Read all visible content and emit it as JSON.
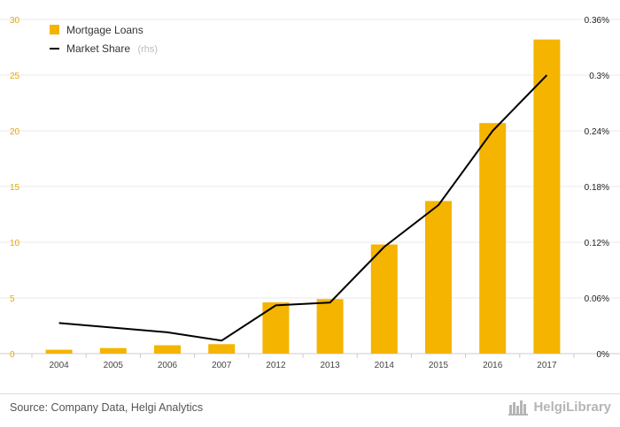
{
  "chart_data": {
    "type": "bar",
    "categories": [
      "2004",
      "2005",
      "2006",
      "2007",
      "2012",
      "2013",
      "2014",
      "2015",
      "2016",
      "2017"
    ],
    "series": [
      {
        "name": "Mortgage Loans",
        "type": "bar",
        "axis": "left",
        "color": "#f5b400",
        "values": [
          0.35,
          0.5,
          0.75,
          0.85,
          4.6,
          4.9,
          9.8,
          13.7,
          20.7,
          28.2
        ]
      },
      {
        "name": "Market Share",
        "type": "line",
        "axis": "right",
        "color": "#000000",
        "values": [
          0.033,
          0.028,
          0.023,
          0.014,
          0.052,
          0.055,
          0.115,
          0.16,
          0.24,
          0.3
        ]
      }
    ],
    "legend_note": "(rhs)",
    "ylim_left": [
      0,
      30
    ],
    "yticks_left": [
      "0",
      "5",
      "10",
      "15",
      "20",
      "25",
      "30"
    ],
    "ylim_right": [
      0,
      0.36
    ],
    "yticks_right": [
      "0%",
      "0.06%",
      "0.12%",
      "0.18%",
      "0.24%",
      "0.3%",
      "0.36%"
    ],
    "grid": true,
    "legend_position": "top-left"
  },
  "footer": {
    "source": "Source: Company Data, Helgi Analytics",
    "brand": "HelgiLibrary"
  }
}
